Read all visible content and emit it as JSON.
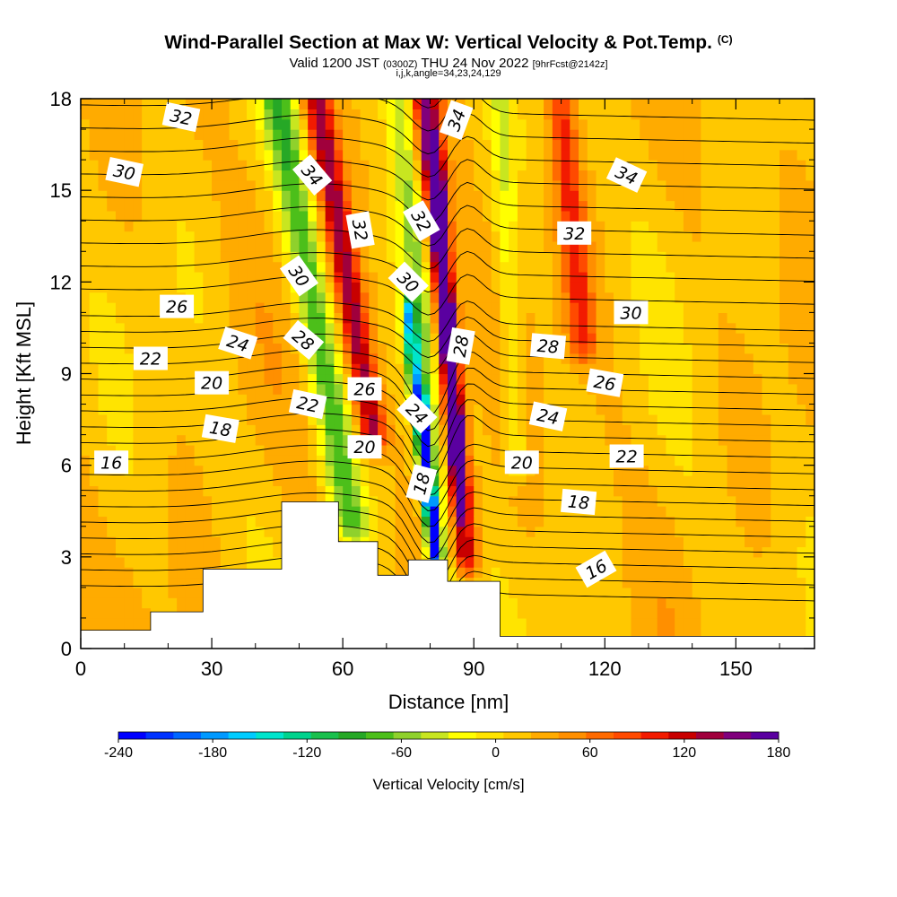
{
  "header": {
    "title": "Wind-Parallel Section at Max W: Vertical Velocity & Pot.Temp.",
    "copyright": "(C)",
    "valid_prefix": "Valid 1200 JST",
    "valid_z": "(0300Z)",
    "valid_date": "THU 24 Nov 2022",
    "forecast": "[9hrFcst@2142z]",
    "params": "i,j,k,angle=34,23,24,129"
  },
  "chart_data": {
    "type": "heatmap",
    "xlabel": "Distance [nm]",
    "ylabel": "Height [Kft MSL]",
    "xlim": [
      0,
      168
    ],
    "ylim": [
      0,
      18
    ],
    "x_ticks": [
      "0",
      "30",
      "60",
      "90",
      "120",
      "150"
    ],
    "x_tick_values": [
      0,
      30,
      60,
      90,
      120,
      150
    ],
    "y_ticks": [
      "0",
      "3",
      "6",
      "9",
      "12",
      "15",
      "18"
    ],
    "y_tick_values": [
      0,
      3,
      6,
      9,
      12,
      15,
      18
    ],
    "colorbar": {
      "title": "Vertical Velocity [cm/s]",
      "labels": [
        "-240",
        "-180",
        "-120",
        "-60",
        "0",
        "60",
        "120",
        "180"
      ],
      "label_values": [
        -240,
        -180,
        -120,
        -60,
        0,
        60,
        120,
        180
      ],
      "range": [
        -240,
        180
      ],
      "colors": [
        "#0000ff",
        "#0033ff",
        "#0066ff",
        "#0099ff",
        "#00ccff",
        "#00e5cc",
        "#00d38d",
        "#19c04d",
        "#26a826",
        "#4cbf1a",
        "#8fd12c",
        "#c8e620",
        "#ffff00",
        "#ffe400",
        "#ffc800",
        "#ffab00",
        "#ff8f00",
        "#ff6a00",
        "#ff4a00",
        "#f21b00",
        "#c80000",
        "#a0003c",
        "#80007c",
        "#5a00a0"
      ]
    },
    "vertical_velocity_bands": [
      {
        "x_bottom": 84,
        "x_top": 73,
        "y_bottom": 2.5,
        "y_top": 18,
        "half_width": 3.5,
        "w": -60,
        "desc": "downdraft outer"
      },
      {
        "x_bottom": 81,
        "x_top": 75,
        "y_bottom": 3,
        "y_top": 11,
        "half_width": 1.6,
        "w": -150,
        "desc": "downdraft core"
      },
      {
        "x_bottom": 81,
        "x_top": 78,
        "y_bottom": 3.5,
        "y_top": 8,
        "half_width": 0.9,
        "w": -230,
        "desc": "downdraft min"
      },
      {
        "x_bottom": 88,
        "x_top": 79,
        "y_bottom": 3,
        "y_top": 18,
        "half_width": 3,
        "w": 130,
        "desc": "updraft"
      },
      {
        "x_bottom": 87,
        "x_top": 81,
        "y_bottom": 5,
        "y_top": 16,
        "half_width": 1.4,
        "w": 175,
        "desc": "updraft core"
      },
      {
        "x_bottom": 62,
        "x_top": 45,
        "y_bottom": 4,
        "y_top": 18,
        "half_width": 4,
        "w": -90,
        "desc": "west downdraft"
      },
      {
        "x_bottom": 67,
        "x_top": 54,
        "y_bottom": 7,
        "y_top": 18,
        "half_width": 3.2,
        "w": 120,
        "desc": "west updraft"
      },
      {
        "x_bottom": 100,
        "x_top": 96,
        "y_bottom": 6,
        "y_top": 18,
        "half_width": 2.5,
        "w": -40,
        "desc": "east downdraft"
      },
      {
        "x_bottom": 115,
        "x_top": 110,
        "y_bottom": 10,
        "y_top": 18,
        "half_width": 3,
        "w": 75,
        "desc": "east updraft"
      }
    ],
    "terrain": [
      [
        0,
        0.6
      ],
      [
        16,
        0.6
      ],
      [
        16,
        1.2
      ],
      [
        28,
        1.2
      ],
      [
        28,
        2.6
      ],
      [
        46,
        2.6
      ],
      [
        46,
        4.8
      ],
      [
        59,
        4.8
      ],
      [
        59,
        3.5
      ],
      [
        68,
        3.5
      ],
      [
        68,
        2.4
      ],
      [
        75,
        2.4
      ],
      [
        75,
        2.9
      ],
      [
        84,
        2.9
      ],
      [
        84,
        2.2
      ],
      [
        96,
        2.2
      ],
      [
        96,
        0.4
      ],
      [
        168,
        0.4
      ]
    ],
    "theta_contour_levels": [
      16,
      18,
      20,
      22,
      24,
      26,
      28,
      30,
      32,
      34
    ],
    "theta_labels": [
      {
        "text": "32",
        "x": 23,
        "y": 17.4,
        "angle": 12
      },
      {
        "text": "30",
        "x": 10,
        "y": 15.6,
        "angle": 12
      },
      {
        "text": "34",
        "x": 53,
        "y": 15.5,
        "angle": 50
      },
      {
        "text": "32",
        "x": 64,
        "y": 13.7,
        "angle": 80
      },
      {
        "text": "32",
        "x": 78,
        "y": 14.0,
        "angle": 60
      },
      {
        "text": "34",
        "x": 86,
        "y": 17.3,
        "angle": -70
      },
      {
        "text": "34",
        "x": 125,
        "y": 15.5,
        "angle": 25
      },
      {
        "text": "32",
        "x": 113,
        "y": 13.6,
        "angle": 0
      },
      {
        "text": "30",
        "x": 50,
        "y": 12.2,
        "angle": 55
      },
      {
        "text": "30",
        "x": 75,
        "y": 12.0,
        "angle": 45
      },
      {
        "text": "30",
        "x": 126,
        "y": 11.0,
        "angle": 0
      },
      {
        "text": "26",
        "x": 22,
        "y": 11.2,
        "angle": 0
      },
      {
        "text": "28",
        "x": 51,
        "y": 10.1,
        "angle": 40
      },
      {
        "text": "28",
        "x": 87,
        "y": 9.9,
        "angle": -80
      },
      {
        "text": "28",
        "x": 107,
        "y": 9.9,
        "angle": 5
      },
      {
        "text": "24",
        "x": 36,
        "y": 10.0,
        "angle": 18
      },
      {
        "text": "22",
        "x": 16,
        "y": 9.5,
        "angle": 0
      },
      {
        "text": "20",
        "x": 30,
        "y": 8.7,
        "angle": 0
      },
      {
        "text": "26",
        "x": 65,
        "y": 8.5,
        "angle": 0
      },
      {
        "text": "26",
        "x": 120,
        "y": 8.7,
        "angle": 10
      },
      {
        "text": "22",
        "x": 52,
        "y": 8.0,
        "angle": 12
      },
      {
        "text": "24",
        "x": 77,
        "y": 7.7,
        "angle": 45
      },
      {
        "text": "24",
        "x": 107,
        "y": 7.6,
        "angle": 12
      },
      {
        "text": "18",
        "x": 32,
        "y": 7.2,
        "angle": 10
      },
      {
        "text": "20",
        "x": 65,
        "y": 6.6,
        "angle": 0
      },
      {
        "text": "20",
        "x": 101,
        "y": 6.1,
        "angle": 0
      },
      {
        "text": "22",
        "x": 125,
        "y": 6.3,
        "angle": 0
      },
      {
        "text": "16",
        "x": 7,
        "y": 6.1,
        "angle": 0
      },
      {
        "text": "18",
        "x": 78,
        "y": 5.4,
        "angle": -75
      },
      {
        "text": "18",
        "x": 114,
        "y": 4.8,
        "angle": 5
      },
      {
        "text": "16",
        "x": 118,
        "y": 2.6,
        "angle": -30
      }
    ]
  }
}
